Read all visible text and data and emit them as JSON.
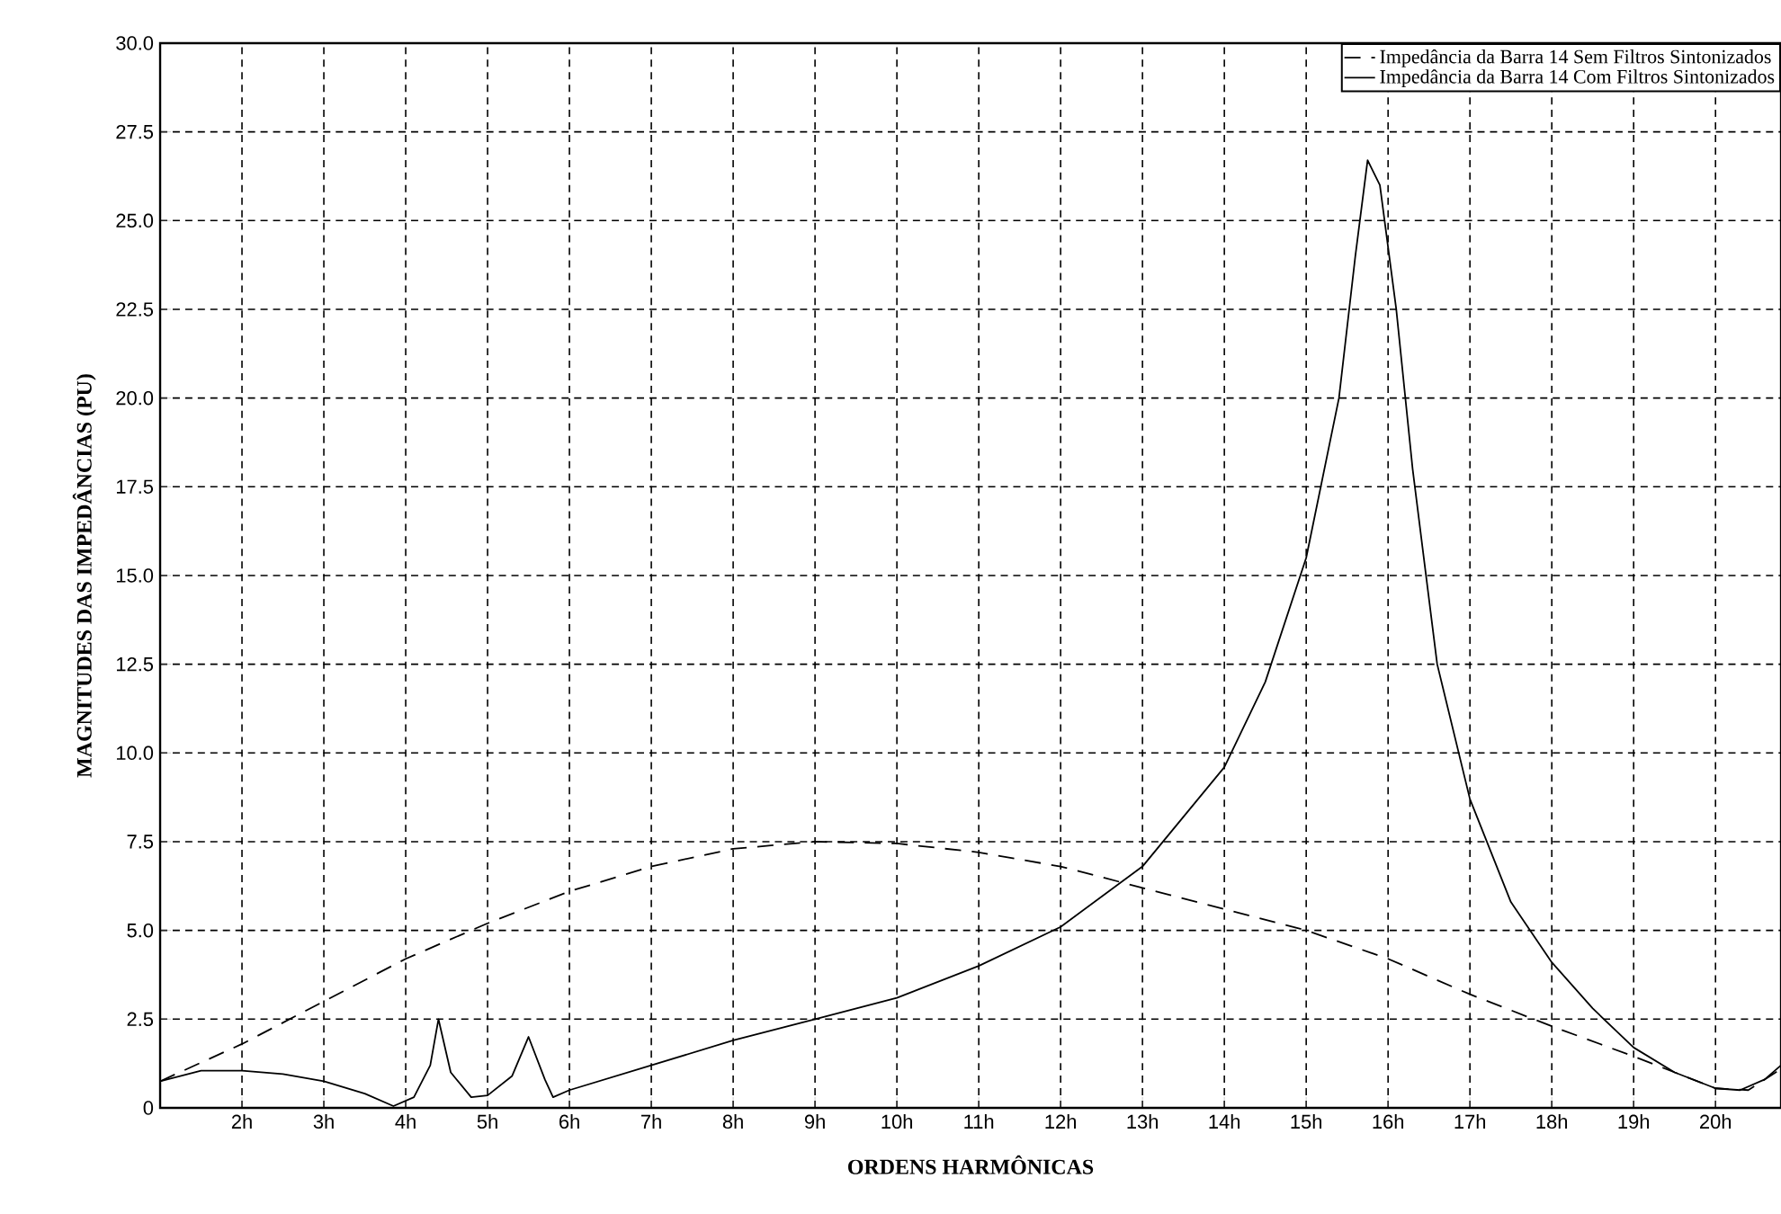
{
  "chart_data": {
    "type": "line",
    "xlabel": "ORDENS HARMÔNICAS",
    "ylabel": "MAGNITUDES DAS IMPEDÂNCIAS (PU)",
    "xlim": [
      1,
      20.8
    ],
    "ylim": [
      0,
      30
    ],
    "xticks": [
      {
        "value": 2,
        "label": "2h"
      },
      {
        "value": 3,
        "label": "3h"
      },
      {
        "value": 4,
        "label": "4h"
      },
      {
        "value": 5,
        "label": "5h"
      },
      {
        "value": 6,
        "label": "6h"
      },
      {
        "value": 7,
        "label": "7h"
      },
      {
        "value": 8,
        "label": "8h"
      },
      {
        "value": 9,
        "label": "9h"
      },
      {
        "value": 10,
        "label": "10h"
      },
      {
        "value": 11,
        "label": "11h"
      },
      {
        "value": 12,
        "label": "12h"
      },
      {
        "value": 13,
        "label": "13h"
      },
      {
        "value": 14,
        "label": "14h"
      },
      {
        "value": 15,
        "label": "15h"
      },
      {
        "value": 16,
        "label": "16h"
      },
      {
        "value": 17,
        "label": "17h"
      },
      {
        "value": 18,
        "label": "18h"
      },
      {
        "value": 19,
        "label": "19h"
      },
      {
        "value": 20,
        "label": "20h"
      }
    ],
    "yticks": [
      0,
      2.5,
      {
        "value": 5,
        "label": "5.0"
      },
      7.5,
      {
        "value": 10,
        "label": "10.0"
      },
      12.5,
      {
        "value": 15,
        "label": "15.0"
      },
      17.5,
      {
        "value": 20,
        "label": "20.0"
      },
      22.5,
      {
        "value": 25,
        "label": "25.0"
      },
      27.5,
      {
        "value": 30,
        "label": "30.0"
      }
    ],
    "grid": true,
    "legend": "top right",
    "marker": "none",
    "series": [
      {
        "name": "Impedância da Barra 14 Sem Filtros Sintonizados",
        "color": "#000000",
        "line_style": "dashed",
        "x": [
          1,
          2,
          3,
          4,
          5,
          6,
          7,
          8,
          9,
          10,
          11,
          12,
          13,
          14,
          15,
          16,
          17,
          18,
          19,
          20,
          20.4,
          20.8
        ],
        "values": [
          0.75,
          1.8,
          3.0,
          4.2,
          5.2,
          6.1,
          6.8,
          7.3,
          7.5,
          7.45,
          7.2,
          6.8,
          6.2,
          5.6,
          5.0,
          4.2,
          3.2,
          2.3,
          1.45,
          0.55,
          0.5,
          1.1
        ]
      },
      {
        "name": "Impedância da Barra 14 Com Filtros Sintonizados",
        "color": "#000000",
        "line_style": "solid",
        "x": [
          1,
          1.5,
          2,
          2.5,
          3,
          3.5,
          3.85,
          4.1,
          4.3,
          4.4,
          4.55,
          4.8,
          5.0,
          5.3,
          5.5,
          5.7,
          5.8,
          6,
          7,
          8,
          9,
          10,
          11,
          12,
          13,
          14,
          14.5,
          15,
          15.4,
          15.6,
          15.75,
          15.9,
          16.1,
          16.3,
          16.6,
          17,
          17.5,
          18,
          18.5,
          19,
          19.5,
          20,
          20.3,
          20.6,
          20.8
        ],
        "values": [
          0.75,
          1.05,
          1.05,
          0.95,
          0.75,
          0.4,
          0.05,
          0.3,
          1.2,
          2.5,
          1.0,
          0.3,
          0.35,
          0.9,
          2.0,
          0.8,
          0.3,
          0.5,
          1.2,
          1.9,
          2.5,
          3.1,
          4.0,
          5.1,
          6.8,
          9.6,
          12.0,
          15.5,
          20.0,
          24.0,
          26.7,
          26.0,
          22.5,
          18.0,
          12.5,
          8.7,
          5.8,
          4.1,
          2.8,
          1.7,
          1.0,
          0.55,
          0.5,
          0.8,
          1.2
        ]
      }
    ]
  }
}
